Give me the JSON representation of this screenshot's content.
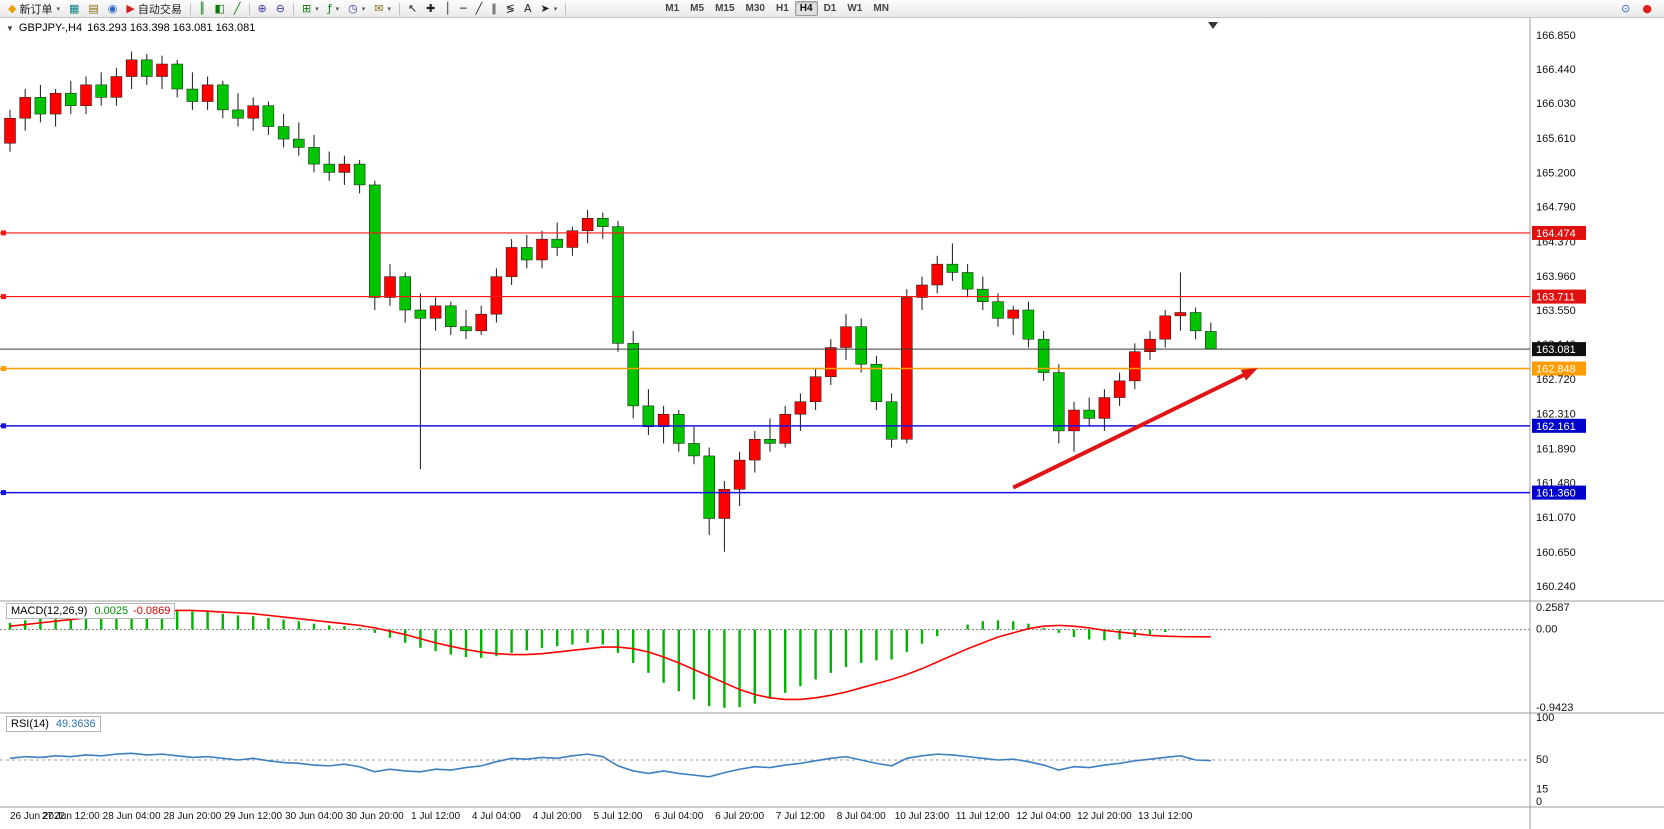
{
  "icons": {
    "caret_down": "▾",
    "collapse": "▼"
  },
  "toolbar": {
    "new_order": {
      "label": "新订单",
      "glyph": "◆"
    },
    "autotrading": {
      "label": "自动交易",
      "glyph": "▶"
    },
    "left_icons": [
      {
        "name": "charts-icon",
        "glyph": "▦",
        "color": "#0a8080"
      },
      {
        "name": "profiles-icon",
        "glyph": "▤",
        "color": "#8a6a10"
      },
      {
        "name": "info-icon",
        "glyph": "◉",
        "color": "#2a62c8"
      }
    ],
    "chart_type_icons": [
      {
        "name": "bar-chart-icon",
        "glyph": "║",
        "color": "#0a7a0a"
      },
      {
        "name": "candlestick-icon",
        "glyph": "◧",
        "color": "#0a7a0a"
      },
      {
        "name": "line-chart-icon",
        "glyph": "╱",
        "color": "#0a7a0a"
      }
    ],
    "zoom_icons": [
      {
        "name": "zoom-in-icon",
        "glyph": "⊕",
        "color": "#3a3a9a"
      },
      {
        "name": "zoom-out-icon",
        "glyph": "⊖",
        "color": "#3a3a9a"
      }
    ],
    "window_icons": [
      {
        "name": "new-chart-icon",
        "glyph": "⊞",
        "color": "#0a7a0a",
        "caret": true
      },
      {
        "name": "indicators-icon",
        "glyph": "ƒ",
        "color": "#0a7a0a",
        "caret": true
      },
      {
        "name": "periods-icon",
        "glyph": "◷",
        "color": "#3a3a9a",
        "caret": true
      },
      {
        "name": "templates-icon",
        "glyph": "✉",
        "color": "#8a6a10",
        "caret": true
      }
    ],
    "drawing_icons": [
      {
        "name": "cursor-icon",
        "glyph": "↖",
        "color": "#222222"
      },
      {
        "name": "crosshair-icon",
        "glyph": "✚",
        "color": "#222222"
      },
      {
        "name": "vertical-line-icon",
        "glyph": "│",
        "color": "#222222"
      },
      {
        "name": "horizontal-line-icon",
        "glyph": "─",
        "color": "#222222"
      },
      {
        "name": "trendline-icon",
        "glyph": "╱",
        "color": "#222222"
      },
      {
        "name": "channel-icon",
        "glyph": "∥",
        "color": "#222222"
      },
      {
        "name": "fibonacci-icon",
        "glyph": "≶",
        "color": "#222222"
      },
      {
        "name": "text-icon",
        "glyph": "A",
        "color": "#222222"
      },
      {
        "name": "arrows-icon",
        "glyph": "➤",
        "color": "#222222",
        "caret": true
      }
    ],
    "timeframes": [
      "M1",
      "M5",
      "M15",
      "M30",
      "H1",
      "H4",
      "D1",
      "W1",
      "MN"
    ],
    "active_timeframe": "H4",
    "right_icons": [
      {
        "name": "search-icon",
        "glyph": "⊙",
        "color": "#2a62c8"
      },
      {
        "name": "alert-icon",
        "glyph": "●",
        "color": "#e02020"
      }
    ]
  },
  "chart": {
    "title": "GBPJPY-,H4",
    "ohlc_text": "163.293 163.398 163.081 163.081",
    "colors": {
      "up": "#ff0000",
      "down": "#00c400",
      "wick": "#1a1a1a",
      "macd_histogram": "#00b400",
      "macd_signal": "#ff0000",
      "rsi_line": "#3c7fc0"
    },
    "price_ticks": [
      "166.850",
      "166.440",
      "166.030",
      "165.610",
      "165.200",
      "164.790",
      "164.370",
      "163.960",
      "163.550",
      "163.140",
      "162.720",
      "162.310",
      "161.890",
      "161.480",
      "161.070",
      "160.650",
      "160.240"
    ],
    "hlines": [
      {
        "label": "164.474",
        "price": 164.474,
        "color": "#ff1414",
        "tag_bg": "#e01010",
        "marker": true,
        "width": 1.2
      },
      {
        "label": "163.711",
        "price": 163.711,
        "color": "#ff1414",
        "tag_bg": "#e01010",
        "marker": true,
        "width": 1.2
      },
      {
        "label": "163.081",
        "price": 163.081,
        "color": "#3a3a3a",
        "tag_bg": "#101010",
        "marker": false,
        "width": 1.0
      },
      {
        "label": "162.848",
        "price": 162.848,
        "color": "#ff9c00",
        "tag_bg": "#ff9c00",
        "marker": true,
        "width": 1.5
      },
      {
        "label": "162.161",
        "price": 162.161,
        "color": "#1414e0",
        "tag_bg": "#0000cc",
        "marker": true,
        "width": 1.5
      },
      {
        "label": "161.360",
        "price": 161.36,
        "color": "#1414e0",
        "tag_bg": "#0000cc",
        "marker": true,
        "width": 1.5
      }
    ],
    "arrow": {
      "from_index": 66,
      "from_price": 161.42,
      "to_index": 81.5,
      "to_price": 162.8,
      "color": "#e01414"
    }
  },
  "chart_data": {
    "type": "candlestick",
    "symbol": "GBPJPY-",
    "timeframe": "H4",
    "ohlc_current": {
      "open": 163.293,
      "high": 163.398,
      "low": 163.081,
      "close": 163.081
    },
    "ylim": [
      160.12,
      166.98
    ],
    "candles": [
      [
        165.55,
        165.95,
        165.45,
        165.85
      ],
      [
        165.85,
        166.2,
        165.7,
        166.1
      ],
      [
        166.1,
        166.25,
        165.8,
        165.9
      ],
      [
        165.9,
        166.2,
        165.75,
        166.15
      ],
      [
        166.15,
        166.3,
        165.9,
        166.0
      ],
      [
        166.0,
        166.35,
        165.9,
        166.25
      ],
      [
        166.25,
        166.4,
        166.0,
        166.1
      ],
      [
        166.1,
        166.45,
        166.0,
        166.35
      ],
      [
        166.35,
        166.65,
        166.2,
        166.55
      ],
      [
        166.55,
        166.62,
        166.25,
        166.35
      ],
      [
        166.35,
        166.6,
        166.2,
        166.5
      ],
      [
        166.5,
        166.55,
        166.1,
        166.2
      ],
      [
        166.2,
        166.4,
        165.95,
        166.05
      ],
      [
        166.05,
        166.35,
        165.95,
        166.25
      ],
      [
        166.25,
        166.3,
        165.85,
        165.95
      ],
      [
        165.95,
        166.15,
        165.75,
        165.85
      ],
      [
        165.85,
        166.1,
        165.7,
        166.0
      ],
      [
        166.0,
        166.05,
        165.65,
        165.75
      ],
      [
        165.75,
        165.9,
        165.5,
        165.6
      ],
      [
        165.6,
        165.8,
        165.4,
        165.5
      ],
      [
        165.5,
        165.65,
        165.2,
        165.3
      ],
      [
        165.3,
        165.45,
        165.1,
        165.2
      ],
      [
        165.2,
        165.4,
        165.05,
        165.3
      ],
      [
        165.3,
        165.35,
        164.95,
        165.05
      ],
      [
        165.05,
        165.1,
        163.55,
        163.7
      ],
      [
        163.7,
        164.1,
        163.6,
        163.95
      ],
      [
        163.95,
        164.0,
        163.4,
        163.55
      ],
      [
        163.55,
        163.75,
        161.64,
        163.45
      ],
      [
        163.45,
        163.7,
        163.3,
        163.6
      ],
      [
        163.6,
        163.65,
        163.25,
        163.35
      ],
      [
        163.35,
        163.55,
        163.2,
        163.3
      ],
      [
        163.3,
        163.6,
        163.25,
        163.5
      ],
      [
        163.5,
        164.05,
        163.4,
        163.95
      ],
      [
        163.95,
        164.4,
        163.85,
        164.3
      ],
      [
        164.3,
        164.45,
        164.05,
        164.15
      ],
      [
        164.15,
        164.5,
        164.05,
        164.4
      ],
      [
        164.4,
        164.6,
        164.2,
        164.3
      ],
      [
        164.3,
        164.55,
        164.2,
        164.5
      ],
      [
        164.5,
        164.75,
        164.35,
        164.65
      ],
      [
        164.65,
        164.72,
        164.4,
        164.55
      ],
      [
        164.55,
        164.62,
        163.05,
        163.15
      ],
      [
        163.15,
        163.3,
        162.25,
        162.4
      ],
      [
        162.4,
        162.6,
        162.05,
        162.15
      ],
      [
        162.15,
        162.4,
        161.95,
        162.3
      ],
      [
        162.3,
        162.35,
        161.85,
        161.95
      ],
      [
        161.95,
        162.15,
        161.7,
        161.8
      ],
      [
        161.8,
        161.9,
        160.85,
        161.05
      ],
      [
        161.05,
        161.5,
        160.65,
        161.4
      ],
      [
        161.4,
        161.85,
        161.2,
        161.75
      ],
      [
        161.75,
        162.1,
        161.6,
        162.0
      ],
      [
        162.0,
        162.25,
        161.85,
        161.95
      ],
      [
        161.95,
        162.4,
        161.9,
        162.3
      ],
      [
        162.3,
        162.55,
        162.1,
        162.45
      ],
      [
        162.45,
        162.85,
        162.35,
        162.75
      ],
      [
        162.75,
        163.2,
        162.65,
        163.1
      ],
      [
        163.1,
        163.5,
        162.95,
        163.35
      ],
      [
        163.35,
        163.45,
        162.8,
        162.9
      ],
      [
        162.9,
        163.0,
        162.35,
        162.45
      ],
      [
        162.45,
        162.55,
        161.9,
        162.0
      ],
      [
        162.0,
        163.8,
        161.95,
        163.7
      ],
      [
        163.7,
        163.95,
        163.55,
        163.85
      ],
      [
        163.85,
        164.2,
        163.75,
        164.1
      ],
      [
        164.1,
        164.35,
        163.9,
        164.0
      ],
      [
        164.0,
        164.1,
        163.7,
        163.8
      ],
      [
        163.8,
        163.95,
        163.55,
        163.65
      ],
      [
        163.65,
        163.75,
        163.35,
        163.45
      ],
      [
        163.45,
        163.6,
        163.25,
        163.55
      ],
      [
        163.55,
        163.65,
        163.1,
        163.2
      ],
      [
        163.2,
        163.3,
        162.7,
        162.8
      ],
      [
        162.8,
        162.9,
        161.95,
        162.1
      ],
      [
        162.1,
        162.45,
        161.85,
        162.35
      ],
      [
        162.35,
        162.5,
        162.15,
        162.25
      ],
      [
        162.25,
        162.6,
        162.1,
        162.5
      ],
      [
        162.5,
        162.8,
        162.4,
        162.7
      ],
      [
        162.7,
        163.15,
        162.6,
        163.05
      ],
      [
        163.05,
        163.3,
        162.95,
        163.2
      ],
      [
        163.2,
        163.55,
        163.1,
        163.48
      ],
      [
        163.48,
        164.0,
        163.3,
        163.52
      ],
      [
        163.52,
        163.58,
        163.2,
        163.3
      ],
      [
        163.293,
        163.398,
        163.081,
        163.081
      ]
    ],
    "time_labels": [
      "26 Jun 2022",
      "27 Jun 12:00",
      "28 Jun 04:00",
      "28 Jun 20:00",
      "29 Jun 12:00",
      "30 Jun 04:00",
      "30 Jun 20:00",
      "1 Jul 12:00",
      "4 Jul 04:00",
      "4 Jul 20:00",
      "5 Jul 12:00",
      "6 Jul 04:00",
      "6 Jul 20:00",
      "7 Jul 12:00",
      "8 Jul 04:00",
      "10 Jul 23:00",
      "11 Jul 12:00",
      "12 Jul 04:00",
      "12 Jul 20:00",
      "13 Jul 12:00"
    ],
    "label_every": 4,
    "macd": {
      "label": "MACD(12,26,9)",
      "value_main": "0.0025",
      "value_signal": "-0.0869",
      "scale_labels": [
        "0.2587",
        "0.00",
        "-0.9423"
      ],
      "scale_values": [
        0.2587,
        0,
        -0.9423
      ],
      "histogram": [
        0.08,
        0.11,
        0.14,
        0.16,
        0.18,
        0.2,
        0.22,
        0.24,
        0.258,
        0.25,
        0.255,
        0.24,
        0.22,
        0.21,
        0.19,
        0.17,
        0.16,
        0.14,
        0.12,
        0.1,
        0.07,
        0.05,
        0.04,
        0.02,
        -0.04,
        -0.1,
        -0.16,
        -0.22,
        -0.26,
        -0.3,
        -0.33,
        -0.34,
        -0.32,
        -0.28,
        -0.25,
        -0.22,
        -0.2,
        -0.18,
        -0.16,
        -0.18,
        -0.28,
        -0.4,
        -0.52,
        -0.64,
        -0.74,
        -0.84,
        -0.92,
        -0.94,
        -0.93,
        -0.89,
        -0.83,
        -0.76,
        -0.68,
        -0.6,
        -0.52,
        -0.45,
        -0.4,
        -0.37,
        -0.36,
        -0.27,
        -0.17,
        -0.08,
        0.0,
        0.06,
        0.1,
        0.11,
        0.1,
        0.07,
        0.02,
        -0.04,
        -0.09,
        -0.12,
        -0.13,
        -0.12,
        -0.09,
        -0.06,
        -0.03,
        -0.01,
        0.0,
        0.0025
      ],
      "signal": [
        0.04,
        0.06,
        0.08,
        0.1,
        0.12,
        0.14,
        0.16,
        0.18,
        0.2,
        0.21,
        0.22,
        0.23,
        0.23,
        0.22,
        0.21,
        0.2,
        0.19,
        0.17,
        0.15,
        0.13,
        0.11,
        0.09,
        0.07,
        0.05,
        0.02,
        -0.02,
        -0.06,
        -0.11,
        -0.16,
        -0.2,
        -0.24,
        -0.27,
        -0.29,
        -0.3,
        -0.3,
        -0.29,
        -0.27,
        -0.25,
        -0.23,
        -0.21,
        -0.21,
        -0.23,
        -0.27,
        -0.33,
        -0.4,
        -0.48,
        -0.56,
        -0.64,
        -0.72,
        -0.78,
        -0.82,
        -0.84,
        -0.84,
        -0.82,
        -0.79,
        -0.75,
        -0.7,
        -0.65,
        -0.6,
        -0.54,
        -0.47,
        -0.39,
        -0.31,
        -0.23,
        -0.16,
        -0.09,
        -0.04,
        0.01,
        0.04,
        0.05,
        0.04,
        0.02,
        -0.01,
        -0.03,
        -0.05,
        -0.07,
        -0.08,
        -0.085,
        -0.087,
        -0.0869
      ]
    },
    "rsi": {
      "label": "RSI(14)",
      "value": "49.3636",
      "scale_labels": [
        "100",
        "50",
        "15",
        "0"
      ],
      "scale_values": [
        100,
        50,
        15,
        0
      ],
      "level_dashed": 50,
      "values": [
        52,
        54,
        53,
        55,
        54,
        56,
        55,
        57,
        58,
        56,
        57,
        55,
        53,
        54,
        52,
        50,
        52,
        49,
        47,
        46,
        44,
        43,
        45,
        42,
        36,
        39,
        37,
        36,
        39,
        38,
        41,
        43,
        48,
        52,
        51,
        53,
        52,
        55,
        57,
        54,
        43,
        37,
        34,
        37,
        34,
        32,
        30,
        35,
        39,
        42,
        41,
        44,
        46,
        49,
        52,
        54,
        50,
        46,
        43,
        52,
        55,
        57,
        56,
        54,
        52,
        50,
        51,
        48,
        44,
        38,
        42,
        41,
        44,
        46,
        49,
        51,
        53,
        55,
        50,
        49.3636
      ]
    }
  }
}
